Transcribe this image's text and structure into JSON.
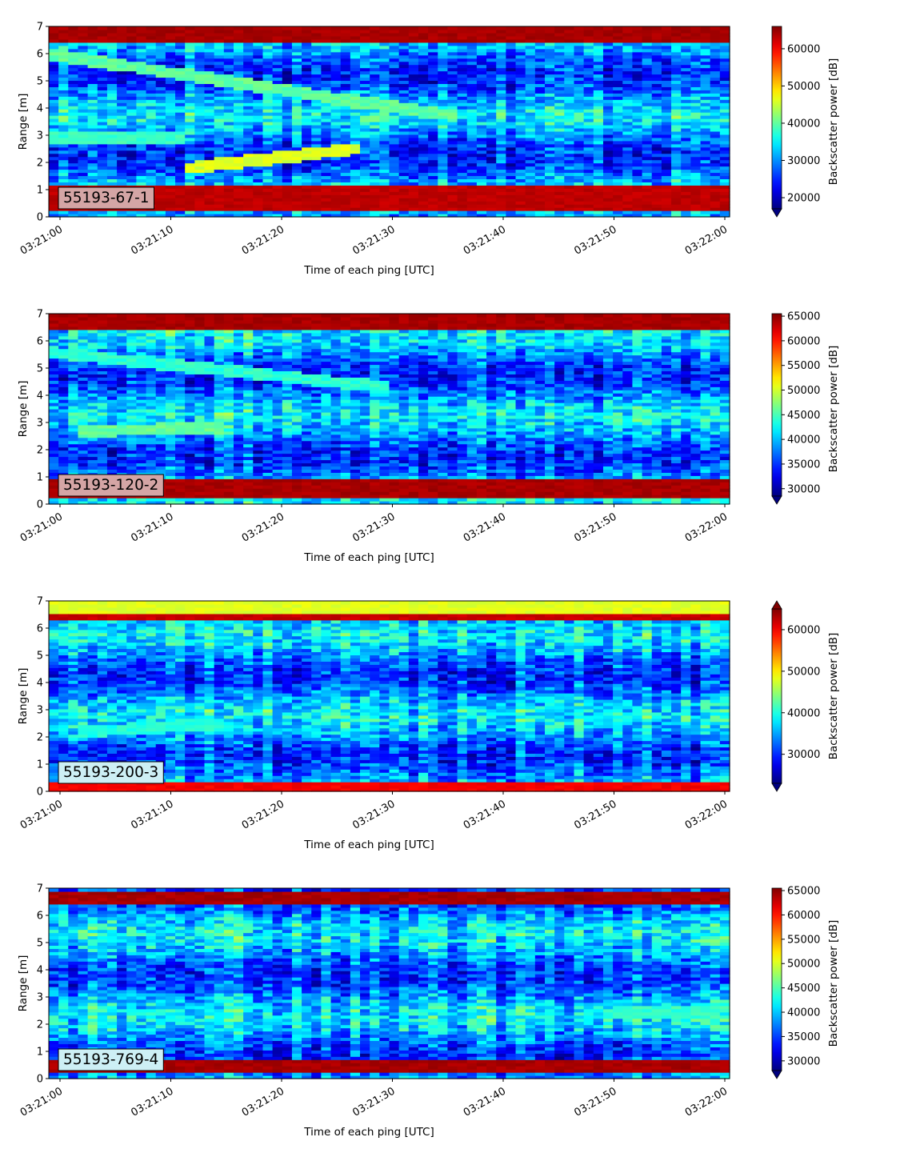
{
  "chart_data": [
    {
      "type": "heatmap",
      "panel_label": "55193-67-1",
      "label_box_color": "#d4a5a5",
      "xlabel": "Time of each ping [UTC]",
      "ylabel": "Range [m]",
      "x_ticks": [
        "03:21:00",
        "03:21:10",
        "03:21:20",
        "03:21:30",
        "03:21:40",
        "03:21:50",
        "03:22:00"
      ],
      "x_range": [
        "03:21:00",
        "03:22:00"
      ],
      "y_ticks": [
        0,
        1,
        2,
        3,
        4,
        5,
        6,
        7
      ],
      "ylim": [
        0,
        7
      ],
      "colormap": "jet",
      "colorbar_label": "Backscatter power [dB]",
      "colorbar_ticks": [
        20000,
        30000,
        40000,
        50000,
        60000
      ],
      "clim": [
        17000,
        66000
      ],
      "colorbar_extend": "min",
      "features": [
        {
          "ymin": 0.2,
          "ymax": 1.2,
          "value": 63000,
          "note": "bottom saturated band"
        },
        {
          "ymin": 6.4,
          "ymax": 7.0,
          "value": 64000,
          "note": "top saturated band"
        },
        {
          "trace_start": [
            0.0,
            2.9
          ],
          "trace_end": [
            0.2,
            2.9
          ],
          "value": 38000
        },
        {
          "trace_start": [
            0.2,
            1.8
          ],
          "trace_end": [
            0.45,
            2.5
          ],
          "value": 46000
        },
        {
          "trace_start": [
            0.0,
            6.0
          ],
          "trace_end": [
            0.6,
            3.7
          ],
          "value": 40000
        }
      ]
    },
    {
      "type": "heatmap",
      "panel_label": "55193-120-2",
      "label_box_color": "#d4a5a5",
      "xlabel": "Time of each ping [UTC]",
      "ylabel": "Range [m]",
      "x_ticks": [
        "03:21:00",
        "03:21:10",
        "03:21:20",
        "03:21:30",
        "03:21:40",
        "03:21:50",
        "03:22:00"
      ],
      "x_range": [
        "03:21:00",
        "03:22:00"
      ],
      "y_ticks": [
        0,
        1,
        2,
        3,
        4,
        5,
        6,
        7
      ],
      "ylim": [
        0,
        7
      ],
      "colormap": "jet",
      "colorbar_label": "Backscatter power [dB]",
      "colorbar_ticks": [
        30000,
        35000,
        40000,
        45000,
        50000,
        55000,
        60000,
        65000
      ],
      "clim": [
        28500,
        65500
      ],
      "colorbar_extend": "min",
      "features": [
        {
          "ymin": 0.2,
          "ymax": 0.95,
          "value": 64000,
          "note": "bottom saturated band"
        },
        {
          "ymin": 6.4,
          "ymax": 7.0,
          "value": 64000,
          "note": "top saturated band"
        },
        {
          "trace_start": [
            0.05,
            2.7
          ],
          "trace_end": [
            0.25,
            2.8
          ],
          "value": 46000
        },
        {
          "trace_start": [
            0.0,
            5.6
          ],
          "trace_end": [
            0.5,
            4.3
          ],
          "value": 44000
        }
      ]
    },
    {
      "type": "heatmap",
      "panel_label": "55193-200-3",
      "label_box_color": "#cdeff5",
      "xlabel": "Time of each ping [UTC]",
      "ylabel": "Range [m]",
      "x_ticks": [
        "03:21:00",
        "03:21:10",
        "03:21:20",
        "03:21:30",
        "03:21:40",
        "03:21:50",
        "03:22:00"
      ],
      "x_range": [
        "03:21:00",
        "03:22:00"
      ],
      "y_ticks": [
        0,
        1,
        2,
        3,
        4,
        5,
        6,
        7
      ],
      "ylim": [
        0,
        7
      ],
      "colormap": "jet",
      "colorbar_label": "Backscatter power [dB]",
      "colorbar_ticks": [
        30000,
        40000,
        50000,
        60000
      ],
      "clim": [
        23000,
        65000
      ],
      "colorbar_extend": "both",
      "features": [
        {
          "ymin": 0.05,
          "ymax": 0.35,
          "value": 60000,
          "note": "bottom saturated band"
        },
        {
          "ymin": 6.3,
          "ymax": 6.55,
          "value": 62000,
          "note": "upper dark-red band"
        },
        {
          "ymin": 6.55,
          "ymax": 7.0,
          "value": 48000,
          "note": "top yellow band"
        },
        {
          "trace_start": [
            0.05,
            2.2
          ],
          "trace_end": [
            0.25,
            2.5
          ],
          "value": 40000
        }
      ]
    },
    {
      "type": "heatmap",
      "panel_label": "55193-769-4",
      "label_box_color": "#cdeff5",
      "xlabel": "Time of each ping [UTC]",
      "ylabel": "Range [m]",
      "x_ticks": [
        "03:21:00",
        "03:21:10",
        "03:21:20",
        "03:21:30",
        "03:21:40",
        "03:21:50",
        "03:22:00"
      ],
      "x_range": [
        "03:21:00",
        "03:22:00"
      ],
      "y_ticks": [
        0,
        1,
        2,
        3,
        4,
        5,
        6,
        7
      ],
      "ylim": [
        0,
        7
      ],
      "colormap": "jet",
      "colorbar_label": "Backscatter power [dB]",
      "colorbar_ticks": [
        30000,
        35000,
        40000,
        45000,
        50000,
        55000,
        60000,
        65000
      ],
      "clim": [
        28000,
        65500
      ],
      "colorbar_extend": "min",
      "features": [
        {
          "ymin": 0.2,
          "ymax": 0.65,
          "value": 64000,
          "note": "bottom saturated band"
        },
        {
          "ymin": 6.4,
          "ymax": 6.85,
          "value": 64000,
          "note": "top saturated band"
        },
        {
          "trace_start": [
            0.82,
            2.4
          ],
          "trace_end": [
            0.98,
            2.5
          ],
          "value": 44000
        }
      ]
    }
  ]
}
